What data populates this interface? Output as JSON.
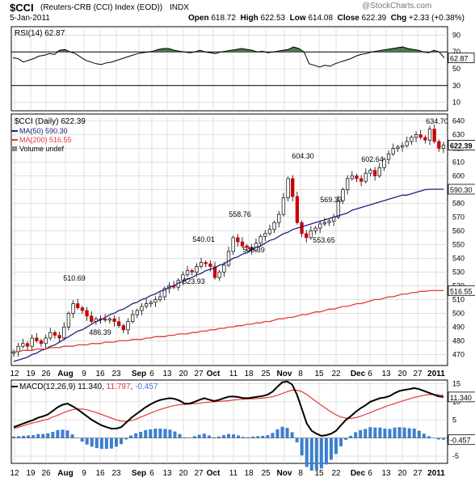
{
  "header": {
    "symbol": "$CCI",
    "description": "(Reuters-CRB (CCI) Index (EOD))",
    "exchange": "INDX",
    "date": "5-Jan-2011",
    "watermark": "@StockCharts.com",
    "open_label": "Open",
    "open": "618.72",
    "high_label": "High",
    "high": "622.53",
    "low_label": "Low",
    "low": "614.08",
    "close_label": "Close",
    "close": "622.39",
    "chg_label": "Chg",
    "chg": "+2.33 (+0.38%)"
  },
  "colors": {
    "price_up": "#000000",
    "price_down": "#cc0000",
    "ma50": "#1a237e",
    "ma200": "#e53935",
    "rsi_fill": "#4a7a4a",
    "macd_line": "#000000",
    "macd_signal": "#e53935",
    "histogram": "#3b7fcf",
    "grid": "#cccccc"
  },
  "chart_data": [
    {
      "type": "line",
      "title": "RSI(14) 62.87",
      "legend": [
        "RSI(14) 62.87"
      ],
      "y_ticks": [
        90,
        70,
        50,
        30,
        10
      ],
      "ylim": [
        0,
        100
      ],
      "reference_lines": [
        70,
        30
      ],
      "last_value_label": "62.87",
      "series": [
        {
          "name": "RSI(14)",
          "values": [
            63,
            62,
            58,
            60,
            62,
            65,
            66,
            68,
            67,
            72,
            73,
            70,
            68,
            64,
            60,
            58,
            56,
            55,
            57,
            58,
            60,
            62,
            64,
            66,
            68,
            69,
            70,
            71,
            73,
            74,
            74,
            72,
            71,
            70,
            69,
            70,
            72,
            70,
            69,
            68,
            70,
            71,
            72,
            73,
            74,
            73,
            72,
            70,
            71,
            69,
            70,
            71,
            72,
            73,
            76,
            74,
            70,
            56,
            54,
            52,
            54,
            53,
            56,
            58,
            60,
            62,
            65,
            67,
            68,
            70,
            71,
            72,
            73,
            74,
            75,
            76,
            74,
            73,
            72,
            70,
            69,
            72,
            70,
            63
          ]
        }
      ]
    },
    {
      "type": "bar",
      "title": "$CCI (Daily) 622.39",
      "legend": [
        "$CCI (Daily) 622.39",
        "MA(50) 590.30",
        "MA(200) 516.55",
        "Volume undef"
      ],
      "ylim": [
        462,
        645
      ],
      "y_ticks": [
        640,
        630,
        620,
        610,
        600,
        590,
        580,
        570,
        560,
        550,
        540,
        530,
        520,
        510,
        500,
        490,
        480,
        470
      ],
      "x_tick_labels": [
        "12",
        "19",
        "26",
        "Aug",
        "9",
        "16",
        "23",
        "Sep",
        "6",
        "13",
        "20",
        "27",
        "Oct",
        "11",
        "18",
        "25",
        "Nov",
        "8",
        "15",
        "22",
        "Dec",
        "6",
        "13",
        "20",
        "27",
        "2011"
      ],
      "annotations": [
        "510.69",
        "486.39",
        "540.01",
        "523.93",
        "558.76",
        "546.39",
        "604.30",
        "569.33",
        "553.65",
        "602.64",
        "634.70"
      ],
      "last_value_labels": [
        "622.39",
        "590.30",
        "516.55"
      ],
      "series": [
        {
          "name": "$CCI (Daily)",
          "type": "ohlc",
          "close": [
            472,
            476,
            478,
            476,
            482,
            480,
            478,
            482,
            486,
            484,
            482,
            490,
            500,
            507,
            504,
            502,
            498,
            494,
            496,
            496,
            495,
            496,
            494,
            491,
            488,
            494,
            499,
            502,
            505,
            507,
            508,
            510,
            512,
            518,
            520,
            519,
            524,
            528,
            531,
            530,
            534,
            537,
            536,
            534,
            526,
            530,
            535,
            545,
            555,
            552,
            549,
            548,
            546,
            551,
            556,
            558,
            561,
            566,
            572,
            584,
            598,
            585,
            566,
            558,
            555,
            560,
            562,
            565,
            566,
            567,
            570,
            582,
            590,
            598,
            600,
            598,
            596,
            602,
            604,
            600,
            606,
            612,
            616,
            620,
            621,
            622,
            625,
            628,
            630,
            628,
            626,
            634,
            625,
            620,
            622.39
          ]
        },
        {
          "name": "MA(50)",
          "type": "line",
          "values": [
            465,
            466,
            467,
            468,
            470,
            471,
            473,
            474,
            476,
            477,
            479,
            481,
            483,
            485,
            487,
            488,
            490,
            492,
            494,
            495,
            497,
            499,
            500,
            502,
            503,
            505,
            507,
            508,
            510,
            511,
            513,
            514,
            516,
            517,
            519,
            520,
            522,
            523,
            525,
            526,
            528,
            529,
            531,
            532,
            533,
            535,
            536,
            538,
            540,
            541,
            543,
            544,
            546,
            548,
            549,
            551,
            553,
            554,
            556,
            558,
            559,
            561,
            562,
            563,
            564,
            565,
            566,
            567,
            568,
            569,
            570,
            571,
            572,
            573,
            575,
            576,
            577,
            578,
            579,
            580,
            581,
            582,
            583,
            584,
            585,
            586,
            586,
            587,
            588,
            589,
            590,
            590.3,
            590.3,
            590.3,
            590.3
          ]
        },
        {
          "name": "MA(200)",
          "type": "line",
          "values": [
            472,
            472,
            473,
            473,
            473,
            474,
            474,
            474,
            475,
            475,
            475,
            476,
            476,
            476,
            477,
            477,
            477,
            478,
            478,
            478,
            479,
            479,
            479,
            480,
            480,
            480,
            481,
            481,
            481,
            482,
            482,
            483,
            483,
            483,
            484,
            484,
            485,
            485,
            485,
            486,
            486,
            487,
            487,
            488,
            488,
            489,
            489,
            490,
            490,
            491,
            491,
            492,
            492,
            493,
            493,
            494,
            494,
            495,
            496,
            496,
            497,
            497,
            498,
            499,
            499,
            500,
            501,
            501,
            502,
            503,
            503,
            504,
            505,
            505,
            506,
            507,
            507,
            508,
            509,
            510,
            510,
            511,
            512,
            512,
            513,
            514,
            514,
            515,
            515,
            516,
            516,
            516.5,
            516.5,
            516.5,
            516.55
          ]
        }
      ]
    },
    {
      "type": "line",
      "title": "MACD(12,26,9) 11.340, 11.797, -0.457",
      "legend": [
        "MACD(12,26,9) 11.340",
        "11.797",
        "-0.457"
      ],
      "ylim": [
        -7,
        16
      ],
      "y_ticks": [
        15,
        10,
        5,
        0,
        -5
      ],
      "last_value_labels": [
        "11.340",
        "-0.457"
      ],
      "series": [
        {
          "name": "MACD(12,26,9)",
          "values": [
            3,
            3.5,
            4,
            4.5,
            5,
            5.6,
            6,
            6.5,
            7.5,
            8.5,
            9.2,
            9.5,
            8.8,
            8,
            7,
            6,
            5,
            4.2,
            3.5,
            3,
            2.6,
            2.6,
            3,
            4.2,
            5.5,
            6.5,
            7.5,
            8.5,
            9.3,
            10,
            10.5,
            10.8,
            11,
            10.8,
            10.3,
            9.5,
            9.5,
            10,
            10.5,
            11,
            10.6,
            10.2,
            10.5,
            11,
            11.4,
            11.5,
            11.3,
            11,
            11,
            11.2,
            11.4,
            11.6,
            12,
            12.8,
            14.2,
            15.4,
            15.6,
            14.8,
            12,
            8,
            4,
            2,
            1.2,
            0.6,
            0.8,
            1.2,
            2,
            3.5,
            5,
            6,
            7.2,
            8.2,
            9,
            10,
            10.5,
            11,
            11.2,
            11.6,
            12.4,
            13,
            13.3,
            13.5,
            13.8,
            13.5,
            13,
            12.5,
            12,
            11.5,
            11.34
          ]
        },
        {
          "name": "11.797",
          "values": [
            2.6,
            3,
            3.4,
            3.8,
            4.2,
            4.5,
            4.9,
            5.2,
            5.8,
            6.3,
            6.9,
            7.4,
            7.8,
            8,
            8,
            7.8,
            7.4,
            7,
            6.5,
            6,
            5.5,
            5,
            4.7,
            4.6,
            4.8,
            5.2,
            5.8,
            6.3,
            6.9,
            7.4,
            7.9,
            8.3,
            8.7,
            9,
            9.2,
            9.3,
            9.4,
            9.5,
            9.6,
            9.8,
            9.9,
            10,
            10.1,
            10.2,
            10.3,
            10.5,
            10.6,
            10.7,
            10.8,
            10.8,
            10.9,
            11,
            11.2,
            11.4,
            11.8,
            12.3,
            12.8,
            13.2,
            13.2,
            12.8,
            12,
            11,
            10,
            9,
            8.1,
            7.2,
            6.4,
            5.8,
            5.5,
            5.4,
            5.6,
            6,
            6.5,
            7,
            7.6,
            8.1,
            8.6,
            9.1,
            9.5,
            10,
            10.4,
            10.8,
            11.2,
            11.5,
            11.8,
            12,
            12,
            11.9,
            11.797
          ]
        },
        {
          "name": "-0.457",
          "type": "histogram",
          "values": [
            0.4,
            0.5,
            0.6,
            0.7,
            0.8,
            1.1,
            1.1,
            1.3,
            1.7,
            2.2,
            2.3,
            2.1,
            1,
            0,
            -1,
            -1.8,
            -2.4,
            -2.8,
            -3,
            -3,
            -2.9,
            -2.4,
            -1.7,
            -0.4,
            0.7,
            1.3,
            1.7,
            2.2,
            2.4,
            2.6,
            2.6,
            2.5,
            2.3,
            1.8,
            1.1,
            0.2,
            0.1,
            0.5,
            0.9,
            1.2,
            0.7,
            0.2,
            0.4,
            0.8,
            1.1,
            1,
            0.7,
            0.3,
            0.2,
            0.4,
            0.5,
            0.6,
            0.8,
            1.4,
            2.4,
            3.1,
            2.8,
            1.6,
            -1.2,
            -4.8,
            -8,
            -9,
            -8.8,
            -8.4,
            -7.3,
            -6,
            -4.4,
            -2.3,
            -0.5,
            0.6,
            1.6,
            2.2,
            2.5,
            3,
            2.9,
            2.9,
            2.6,
            2.5,
            2.9,
            3,
            2.9,
            2.7,
            2.6,
            2,
            1.2,
            0.5,
            0,
            -0.4,
            -0.457
          ]
        }
      ]
    }
  ]
}
